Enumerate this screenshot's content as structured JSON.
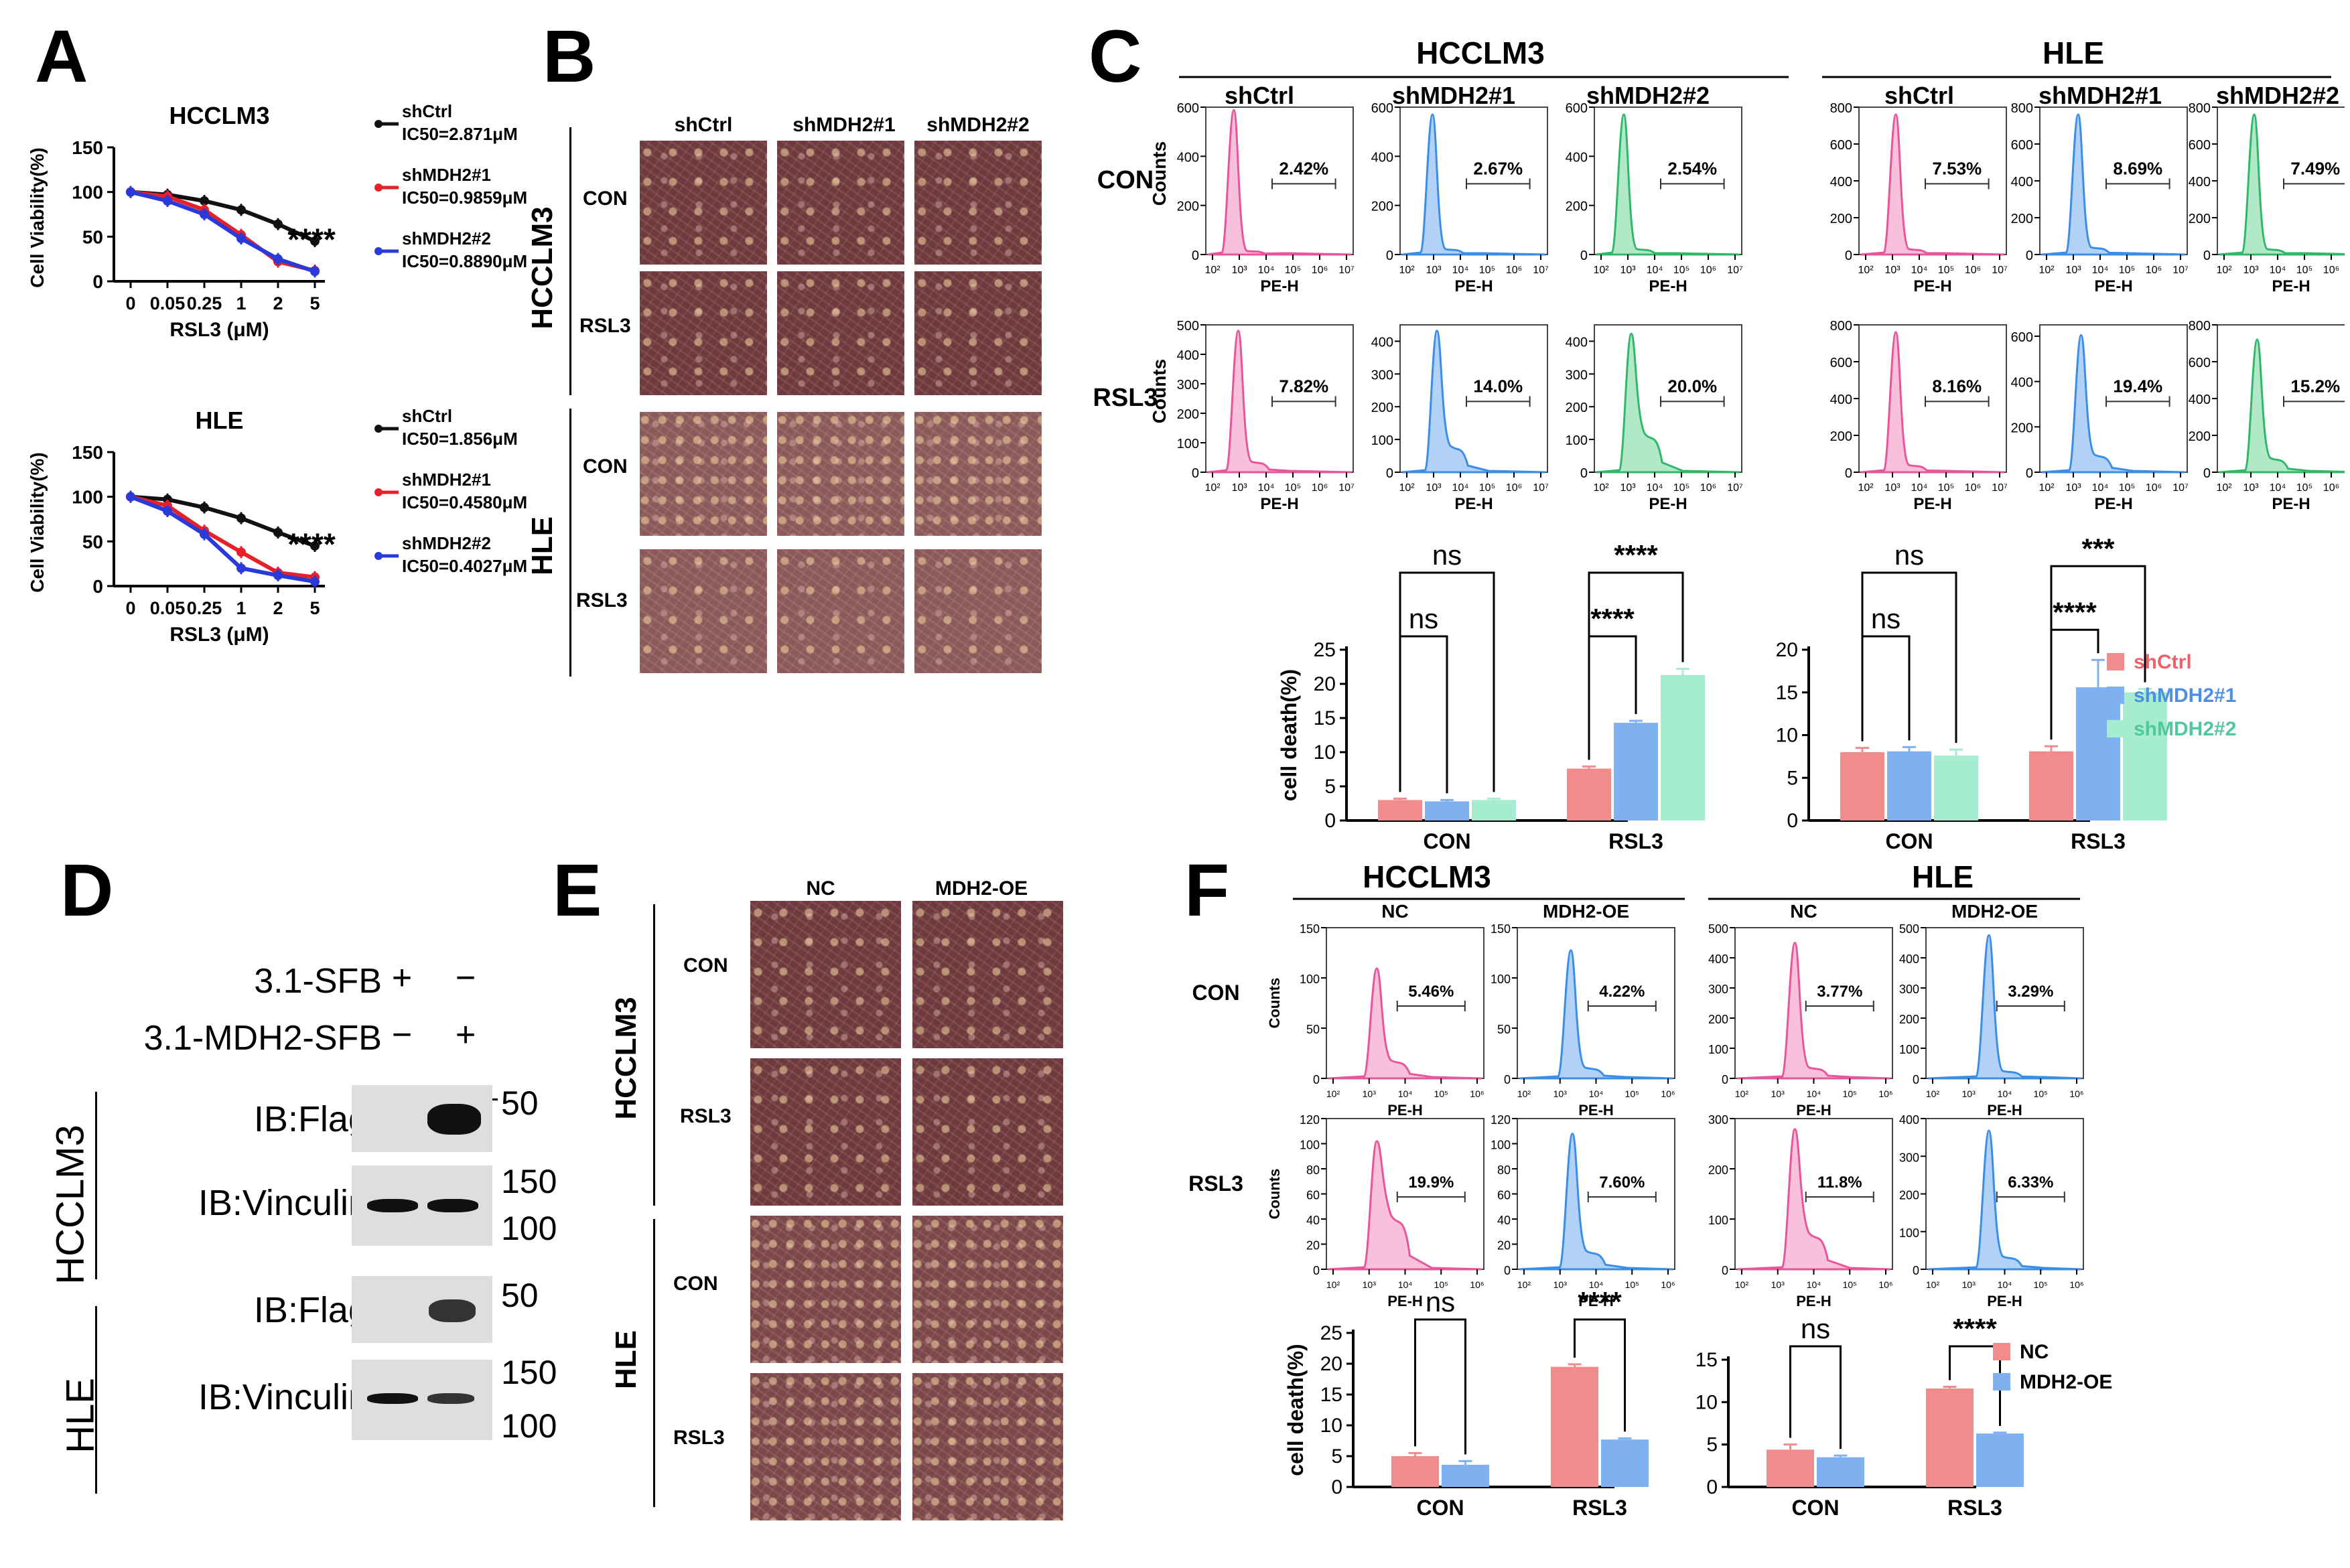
{
  "panels": {
    "A": {
      "label": "A",
      "charts": [
        {
          "title": "HCCLM3",
          "ylabel": "Cell Viability(%)",
          "xlabel": "RSL3 (μM)",
          "xticks": [
            "0",
            "0.05",
            "0.25",
            "1",
            "2",
            "5"
          ],
          "yticks": [
            "0",
            "50",
            "100",
            "150"
          ],
          "sig": "****",
          "series": [
            {
              "name": "shCtrl",
              "ic50": "IC50=2.871μM",
              "color": "#111111",
              "values": [
                100,
                97,
                90,
                80,
                64,
                45
              ]
            },
            {
              "name": "shMDH2#1",
              "ic50": "IC50=0.9859μM",
              "color": "#e8202a",
              "values": [
                100,
                95,
                80,
                52,
                22,
                12
              ]
            },
            {
              "name": "shMDH2#2",
              "ic50": "IC50=0.8890μM",
              "color": "#2a3ad8",
              "values": [
                100,
                90,
                75,
                48,
                25,
                11
              ]
            }
          ]
        },
        {
          "title": "HLE",
          "ylabel": "Cell Viability(%)",
          "xlabel": "RSL3 (μM)",
          "xticks": [
            "0",
            "0.05",
            "0.25",
            "1",
            "2",
            "5"
          ],
          "yticks": [
            "0",
            "50",
            "100",
            "150"
          ],
          "sig": "****",
          "series": [
            {
              "name": "shCtrl",
              "ic50": "IC50=1.856μM",
              "color": "#111111",
              "values": [
                100,
                97,
                88,
                76,
                60,
                45
              ]
            },
            {
              "name": "shMDH2#1",
              "ic50": "IC50=0.4580μM",
              "color": "#e8202a",
              "values": [
                100,
                90,
                62,
                38,
                15,
                10
              ]
            },
            {
              "name": "shMDH2#2",
              "ic50": "IC50=0.4027μM",
              "color": "#2a3ad8",
              "values": [
                100,
                84,
                58,
                20,
                12,
                5
              ]
            }
          ]
        }
      ]
    },
    "B": {
      "label": "B",
      "columns": [
        "shCtrl",
        "shMDH2#1",
        "shMDH2#2"
      ],
      "groups": [
        {
          "cell": "HCCLM3",
          "rows": [
            "CON",
            "RSL3"
          ]
        },
        {
          "cell": "HLE",
          "rows": [
            "CON",
            "RSL3"
          ]
        }
      ]
    },
    "C": {
      "label": "C",
      "cell_lines": [
        "HCCLM3",
        "HLE"
      ],
      "columns": [
        "shCtrl",
        "shMDH2#1",
        "shMDH2#2",
        "shCtrl",
        "shMDH2#1",
        "shMDH2#2"
      ],
      "row_labels": [
        "CON",
        "RSL3"
      ],
      "ylabel": "Counts",
      "xlabel": "PE-H",
      "xticks": [
        "10²",
        "10³",
        "10⁴",
        "10⁵",
        "10⁶",
        "10⁷"
      ],
      "histograms": [
        {
          "row": 0,
          "col": 0,
          "pct": "2.42%",
          "color": "#e9559a",
          "fill": "#f7b9d7",
          "yticks": [
            "0",
            "200",
            "400",
            "600"
          ],
          "ymax": 600,
          "peak": 0.98,
          "x": 0.19,
          "tail": 0.02
        },
        {
          "row": 0,
          "col": 1,
          "pct": "2.67%",
          "color": "#3a8ee8",
          "fill": "#a9cdf5",
          "yticks": [
            "0",
            "200",
            "400",
            "600"
          ],
          "ymax": 600,
          "peak": 0.95,
          "x": 0.22,
          "tail": 0.03
        },
        {
          "row": 0,
          "col": 2,
          "pct": "2.54%",
          "color": "#2fb86a",
          "fill": "#a8e6c2",
          "yticks": [
            "0",
            "200",
            "400",
            "600"
          ],
          "ymax": 600,
          "peak": 0.95,
          "x": 0.2,
          "tail": 0.03
        },
        {
          "row": 0,
          "col": 3,
          "pct": "7.53%",
          "color": "#e9559a",
          "fill": "#f7b9d7",
          "yticks": [
            "0",
            "200",
            "400",
            "600",
            "800"
          ],
          "ymax": 800,
          "peak": 0.95,
          "x": 0.25,
          "tail": 0.03
        },
        {
          "row": 0,
          "col": 4,
          "pct": "8.69%",
          "color": "#3a8ee8",
          "fill": "#a9cdf5",
          "yticks": [
            "0",
            "200",
            "400",
            "600",
            "800"
          ],
          "ymax": 800,
          "peak": 0.95,
          "x": 0.26,
          "tail": 0.04
        },
        {
          "row": 0,
          "col": 5,
          "pct": "7.49%",
          "color": "#2fb86a",
          "fill": "#a8e6c2",
          "yticks": [
            "0",
            "200",
            "400",
            "600",
            "800"
          ],
          "ymax": 800,
          "peak": 0.95,
          "x": 0.25,
          "tail": 0.03
        },
        {
          "row": 1,
          "col": 0,
          "pct": "7.82%",
          "color": "#e9559a",
          "fill": "#f7b9d7",
          "yticks": [
            "0",
            "100",
            "200",
            "300",
            "400",
            "500"
          ],
          "ymax": 500,
          "peak": 0.96,
          "x": 0.22,
          "tail": 0.06
        },
        {
          "row": 1,
          "col": 1,
          "pct": "14.0%",
          "color": "#3a8ee8",
          "fill": "#a9cdf5",
          "yticks": [
            "0",
            "100",
            "200",
            "300",
            "400"
          ],
          "ymax": 450,
          "peak": 0.96,
          "x": 0.25,
          "tail": 0.15
        },
        {
          "row": 1,
          "col": 2,
          "pct": "20.0%",
          "color": "#2fb86a",
          "fill": "#a8e6c2",
          "yticks": [
            "0",
            "100",
            "200",
            "300",
            "400"
          ],
          "ymax": 450,
          "peak": 0.94,
          "x": 0.25,
          "tail": 0.22
        },
        {
          "row": 1,
          "col": 3,
          "pct": "8.16%",
          "color": "#e9559a",
          "fill": "#f7b9d7",
          "yticks": [
            "0",
            "200",
            "400",
            "600",
            "800"
          ],
          "ymax": 800,
          "peak": 0.95,
          "x": 0.25,
          "tail": 0.04
        },
        {
          "row": 1,
          "col": 4,
          "pct": "19.4%",
          "color": "#3a8ee8",
          "fill": "#a9cdf5",
          "yticks": [
            "0",
            "200",
            "400",
            "600"
          ],
          "ymax": 650,
          "peak": 0.93,
          "x": 0.28,
          "tail": 0.1
        },
        {
          "row": 1,
          "col": 5,
          "pct": "15.2%",
          "color": "#2fb86a",
          "fill": "#a8e6c2",
          "yticks": [
            "0",
            "200",
            "400",
            "600",
            "800"
          ],
          "ymax": 800,
          "peak": 0.9,
          "x": 0.27,
          "tail": 0.08
        }
      ],
      "bar_charts": [
        {
          "ylabel": "cell death(%)",
          "categories": [
            "CON",
            "RSL3"
          ],
          "ylim": [
            0,
            25
          ],
          "yticks": [
            "0",
            "5",
            "10",
            "15",
            "20",
            "25"
          ],
          "series": [
            {
              "name": "shCtrl",
              "color": "#f28b8b",
              "values": [
                3.0,
                7.6
              ],
              "err": [
                0.2,
                0.3
              ]
            },
            {
              "name": "shMDH2#1",
              "color": "#7fb0f0",
              "values": [
                2.8,
                14.3
              ],
              "err": [
                0.2,
                0.3
              ]
            },
            {
              "name": "shMDH2#2",
              "color": "#a5ecd0",
              "values": [
                3.0,
                21.3
              ],
              "err": [
                0.2,
                0.9
              ]
            }
          ],
          "sig": [
            {
              "cat": 0,
              "from": 0,
              "to": 1,
              "text": "ns"
            },
            {
              "cat": 0,
              "from": 0,
              "to": 2,
              "text": "ns"
            },
            {
              "cat": 1,
              "from": 0,
              "to": 1,
              "text": "****"
            },
            {
              "cat": 1,
              "from": 0,
              "to": 2,
              "text": "****"
            }
          ]
        },
        {
          "ylabel": "",
          "categories": [
            "CON",
            "RSL3"
          ],
          "ylim": [
            0,
            20
          ],
          "yticks": [
            "0",
            "5",
            "10",
            "15",
            "20"
          ],
          "series": [
            {
              "name": "shCtrl",
              "color": "#f28b8b",
              "values": [
                8.0,
                8.1
              ],
              "err": [
                0.5,
                0.6
              ]
            },
            {
              "name": "shMDH2#1",
              "color": "#7fb0f0",
              "values": [
                8.1,
                15.6
              ],
              "err": [
                0.5,
                3.2
              ]
            },
            {
              "name": "shMDH2#2",
              "color": "#a5ecd0",
              "values": [
                7.6,
                15.0
              ],
              "err": [
                0.7,
                0.4
              ]
            }
          ],
          "sig": [
            {
              "cat": 0,
              "from": 0,
              "to": 1,
              "text": "ns"
            },
            {
              "cat": 0,
              "from": 0,
              "to": 2,
              "text": "ns"
            },
            {
              "cat": 1,
              "from": 0,
              "to": 1,
              "text": "****"
            },
            {
              "cat": 1,
              "from": 0,
              "to": 2,
              "text": "***"
            }
          ]
        }
      ],
      "legend": [
        "shCtrl",
        "shMDH2#1",
        "shMDH2#2"
      ]
    },
    "D": {
      "label": "D",
      "treatments": [
        {
          "name": "3.1-SFB",
          "marks": [
            "+",
            "−"
          ]
        },
        {
          "name": "3.1-MDH2-SFB",
          "marks": [
            "−",
            "+"
          ]
        }
      ],
      "groups": [
        {
          "cell": "HCCLM3",
          "blots": [
            {
              "ib": "IB:Flag",
              "markers": [
                "50"
              ]
            },
            {
              "ib": "IB:Vinculin",
              "markers": [
                "150",
                "100"
              ]
            }
          ]
        },
        {
          "cell": "HLE",
          "blots": [
            {
              "ib": "IB:Flag",
              "markers": [
                "50"
              ]
            },
            {
              "ib": "IB:Vinculin",
              "markers": [
                "150",
                "100"
              ]
            }
          ]
        }
      ]
    },
    "E": {
      "label": "E",
      "columns": [
        "NC",
        "MDH2-OE"
      ],
      "groups": [
        {
          "cell": "HCCLM3",
          "rows": [
            "CON",
            "RSL3"
          ]
        },
        {
          "cell": "HLE",
          "rows": [
            "CON",
            "RSL3"
          ]
        }
      ]
    },
    "F": {
      "label": "F",
      "cell_lines": [
        "HCCLM3",
        "HLE"
      ],
      "columns": [
        "NC",
        "MDH2-OE",
        "NC",
        "MDH2-OE"
      ],
      "row_labels": [
        "CON",
        "RSL3"
      ],
      "ylabel": "Counts",
      "xlabel": "PE-H",
      "xticks": [
        "10²",
        "10³",
        "10⁴",
        "10⁵",
        "10⁶"
      ],
      "histograms": [
        {
          "row": 0,
          "col": 0,
          "pct": "5.46%",
          "color": "#e9559a",
          "fill": "#f7b9d7",
          "yticks": [
            "0",
            "50",
            "100",
            "150"
          ],
          "ymax": 150,
          "peak": 0.73,
          "x": 0.32,
          "tail": 0.1
        },
        {
          "row": 0,
          "col": 1,
          "pct": "4.22%",
          "color": "#3a8ee8",
          "fill": "#a9cdf5",
          "yticks": [
            "0",
            "50",
            "100",
            "150"
          ],
          "ymax": 150,
          "peak": 0.85,
          "x": 0.34,
          "tail": 0.06
        },
        {
          "row": 0,
          "col": 2,
          "pct": "3.77%",
          "color": "#e9559a",
          "fill": "#f7b9d7",
          "yticks": [
            "0",
            "100",
            "200",
            "300",
            "400",
            "500"
          ],
          "ymax": 500,
          "peak": 0.9,
          "x": 0.38,
          "tail": 0.06
        },
        {
          "row": 0,
          "col": 3,
          "pct": "3.29%",
          "color": "#3a8ee8",
          "fill": "#a9cdf5",
          "yticks": [
            "0",
            "100",
            "200",
            "300",
            "400",
            "500"
          ],
          "ymax": 500,
          "peak": 0.95,
          "x": 0.4,
          "tail": 0.04
        },
        {
          "row": 1,
          "col": 0,
          "pct": "19.9%",
          "color": "#e9559a",
          "fill": "#f7b9d7",
          "yticks": [
            "0",
            "20",
            "40",
            "60",
            "80",
            "100",
            "120"
          ],
          "ymax": 120,
          "peak": 0.85,
          "x": 0.32,
          "tail": 0.3
        },
        {
          "row": 1,
          "col": 1,
          "pct": "7.60%",
          "color": "#3a8ee8",
          "fill": "#a9cdf5",
          "yticks": [
            "0",
            "20",
            "40",
            "60",
            "80",
            "100",
            "120"
          ],
          "ymax": 120,
          "peak": 0.9,
          "x": 0.35,
          "tail": 0.1
        },
        {
          "row": 1,
          "col": 2,
          "pct": "11.8%",
          "color": "#e9559a",
          "fill": "#f7b9d7",
          "yticks": [
            "0",
            "100",
            "200",
            "300"
          ],
          "ymax": 300,
          "peak": 0.93,
          "x": 0.38,
          "tail": 0.2
        },
        {
          "row": 1,
          "col": 3,
          "pct": "6.33%",
          "color": "#3a8ee8",
          "fill": "#a9cdf5",
          "yticks": [
            "0",
            "100",
            "200",
            "300",
            "400"
          ],
          "ymax": 400,
          "peak": 0.92,
          "x": 0.4,
          "tail": 0.07
        }
      ],
      "bar_charts": [
        {
          "ylabel": "cell death(%)",
          "categories": [
            "CON",
            "RSL3"
          ],
          "ylim": [
            0,
            25
          ],
          "yticks": [
            "0",
            "5",
            "10",
            "15",
            "20",
            "25"
          ],
          "series": [
            {
              "name": "NC",
              "color": "#f28b8b",
              "values": [
                5.0,
                19.5
              ],
              "err": [
                0.5,
                0.4
              ]
            },
            {
              "name": "MDH2-OE",
              "color": "#7fb0f0",
              "values": [
                3.6,
                7.7
              ],
              "err": [
                0.6,
                0.2
              ]
            }
          ],
          "sig": [
            {
              "cat": 0,
              "from": 0,
              "to": 1,
              "text": "ns"
            },
            {
              "cat": 1,
              "from": 0,
              "to": 1,
              "text": "****"
            }
          ]
        },
        {
          "ylabel": "",
          "categories": [
            "CON",
            "RSL3"
          ],
          "ylim": [
            0,
            15
          ],
          "yticks": [
            "0",
            "5",
            "10",
            "15"
          ],
          "series": [
            {
              "name": "NC",
              "color": "#f28b8b",
              "values": [
                4.4,
                11.6
              ],
              "err": [
                0.6,
                0.2
              ]
            },
            {
              "name": "MDH2-OE",
              "color": "#7fb0f0",
              "values": [
                3.5,
                6.3
              ],
              "err": [
                0.2,
                0.1
              ]
            }
          ],
          "sig": [
            {
              "cat": 0,
              "from": 0,
              "to": 1,
              "text": "ns"
            },
            {
              "cat": 1,
              "from": 0,
              "to": 1,
              "text": "****"
            }
          ]
        }
      ],
      "legend": [
        "NC",
        "MDH2-OE"
      ]
    }
  }
}
